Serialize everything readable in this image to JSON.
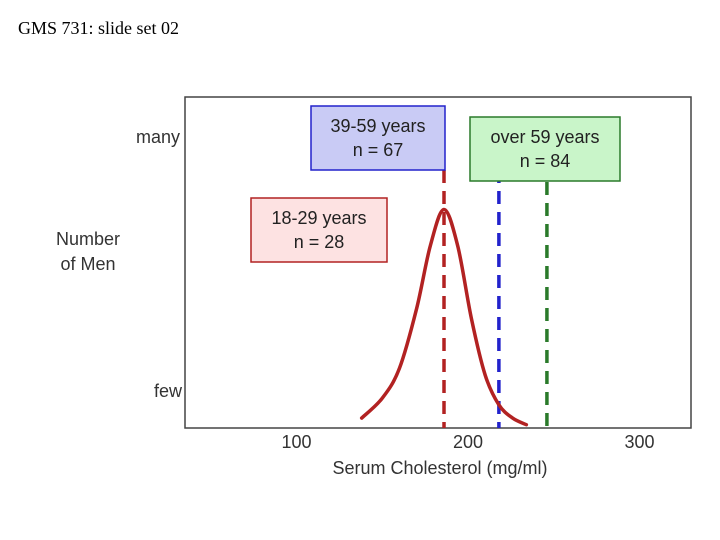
{
  "slide_title": "GMS 731: slide set 02",
  "chart_data": {
    "type": "line",
    "xlabel": "Serum Cholesterol (mg/ml)",
    "ylabel_lines": [
      "Number",
      "of Men"
    ],
    "y_tick_labels": [
      "many",
      "few"
    ],
    "x_ticks": [
      100,
      200,
      300
    ],
    "xlim": [
      35,
      330
    ],
    "grid": false,
    "series": [
      {
        "name": "18-29 years",
        "n_label": "n = 28",
        "color": "#b22222",
        "fill": "#fde2e2",
        "mean": 186,
        "curve": {
          "x": [
            138,
            150,
            160,
            170,
            178,
            186,
            194,
            202,
            210,
            218,
            226,
            234
          ],
          "y": [
            0.03,
            0.09,
            0.18,
            0.36,
            0.55,
            0.66,
            0.55,
            0.33,
            0.16,
            0.07,
            0.03,
            0.01
          ]
        }
      },
      {
        "name": "39-59 years",
        "n_label": "n = 67",
        "color": "#2222cc",
        "fill": "#c9cbf5",
        "mean": 218
      },
      {
        "name": "over 59 years",
        "n_label": "n = 84",
        "color": "#2a7a2a",
        "fill": "#c9f5c9",
        "mean": 246
      }
    ]
  }
}
